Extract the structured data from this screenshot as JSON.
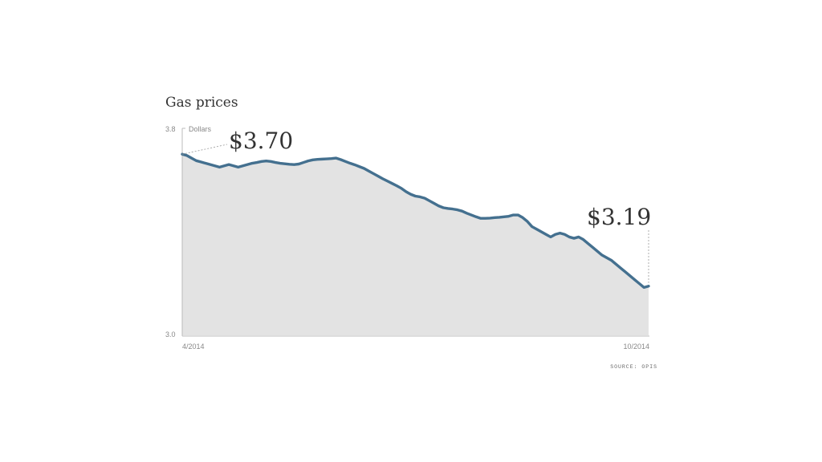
{
  "chart_data": {
    "type": "area",
    "title": "Gas prices",
    "ylabel": "Dollars",
    "ylim": [
      3.0,
      3.8
    ],
    "y_ticks": [
      "3.8",
      "3.0"
    ],
    "x_tick_labels": [
      "4/2014",
      "10/2014"
    ],
    "source": "SOURCE: OPIS",
    "colors": {
      "line": "#44708f",
      "fill": "#e3e3e3",
      "axis": "#bbbbbb"
    },
    "annotations": [
      {
        "label": "$3.70",
        "x": 0,
        "y": 3.7
      },
      {
        "label": "$3.19",
        "x": 100,
        "y": 3.19
      }
    ],
    "series": [
      {
        "x": [
          0,
          1,
          2,
          3,
          4,
          5,
          6,
          7,
          8,
          9,
          10,
          11,
          12,
          13,
          14,
          15,
          16,
          17,
          18,
          19,
          20,
          21,
          22,
          23,
          24,
          25,
          26,
          27,
          28,
          29,
          30,
          31,
          32,
          33,
          34,
          35,
          36,
          37,
          38,
          39,
          40,
          41,
          42,
          43,
          44,
          45,
          46,
          47,
          48,
          49,
          50,
          51,
          52,
          53,
          54,
          55,
          56,
          57,
          58,
          59,
          60,
          61,
          62,
          63,
          64,
          65,
          66,
          67,
          68,
          69,
          70,
          71,
          72,
          73,
          74,
          75,
          76,
          77,
          78,
          79,
          80,
          81,
          82,
          83,
          84,
          85,
          86,
          87,
          88,
          89,
          90,
          91,
          92,
          93,
          94,
          95,
          96,
          97,
          98,
          99,
          100
        ],
        "values": [
          3.7,
          3.695,
          3.685,
          3.675,
          3.67,
          3.665,
          3.66,
          3.655,
          3.65,
          3.655,
          3.66,
          3.655,
          3.65,
          3.655,
          3.66,
          3.665,
          3.668,
          3.672,
          3.674,
          3.672,
          3.668,
          3.665,
          3.663,
          3.661,
          3.66,
          3.662,
          3.668,
          3.674,
          3.678,
          3.68,
          3.681,
          3.682,
          3.683,
          3.685,
          3.679,
          3.672,
          3.665,
          3.659,
          3.652,
          3.645,
          3.635,
          3.625,
          3.615,
          3.605,
          3.596,
          3.587,
          3.578,
          3.568,
          3.555,
          3.545,
          3.538,
          3.535,
          3.53,
          3.52,
          3.51,
          3.5,
          3.493,
          3.49,
          3.488,
          3.485,
          3.48,
          3.472,
          3.465,
          3.458,
          3.452,
          3.452,
          3.453,
          3.455,
          3.456,
          3.458,
          3.46,
          3.465,
          3.465,
          3.455,
          3.44,
          3.42,
          3.41,
          3.4,
          3.39,
          3.38,
          3.39,
          3.395,
          3.39,
          3.38,
          3.375,
          3.38,
          3.37,
          3.355,
          3.34,
          3.325,
          3.31,
          3.3,
          3.29,
          3.275,
          3.26,
          3.245,
          3.23,
          3.215,
          3.2,
          3.185,
          3.19
        ]
      }
    ]
  }
}
